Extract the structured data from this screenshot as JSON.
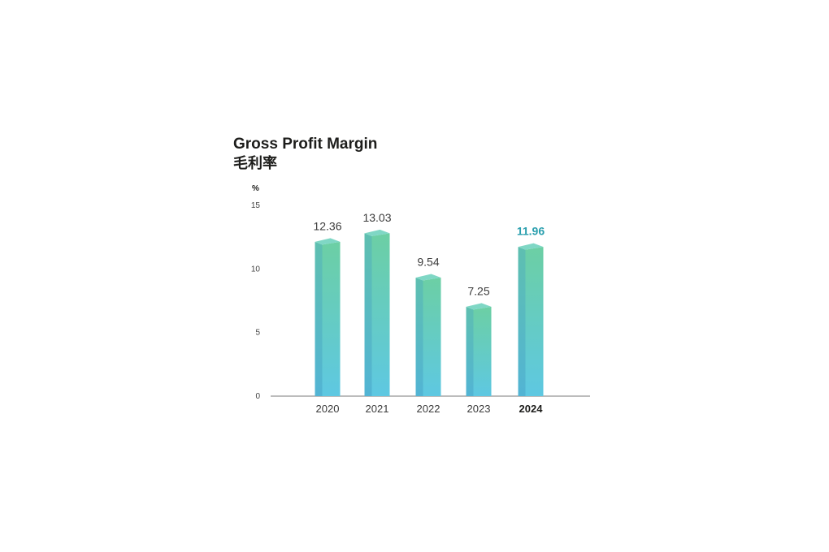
{
  "chart_data": {
    "type": "bar",
    "title": "Gross Profit Margin",
    "subtitle": "毛利率",
    "ylabel": "%",
    "xlabel": "",
    "categories": [
      "2020",
      "2021",
      "2022",
      "2023",
      "2024"
    ],
    "values": [
      12.36,
      13.03,
      9.54,
      7.25,
      11.96
    ],
    "value_labels": [
      "12.36",
      "13.03",
      "9.54",
      "7.25",
      "11.96"
    ],
    "yticks": [
      "0",
      "5",
      "10",
      "15"
    ],
    "ylim": [
      0,
      15
    ],
    "grid": false,
    "highlight_category": "2024",
    "colors": {
      "bar_top": "#7fd7c5",
      "bar_front_top": "#6cd0a6",
      "bar_front_bottom": "#5ec8e0",
      "bar_side": "#56b9c3",
      "highlight_value": "#2a9fae",
      "axis": "#7a7a7a",
      "text": "#3a3a3a"
    }
  }
}
